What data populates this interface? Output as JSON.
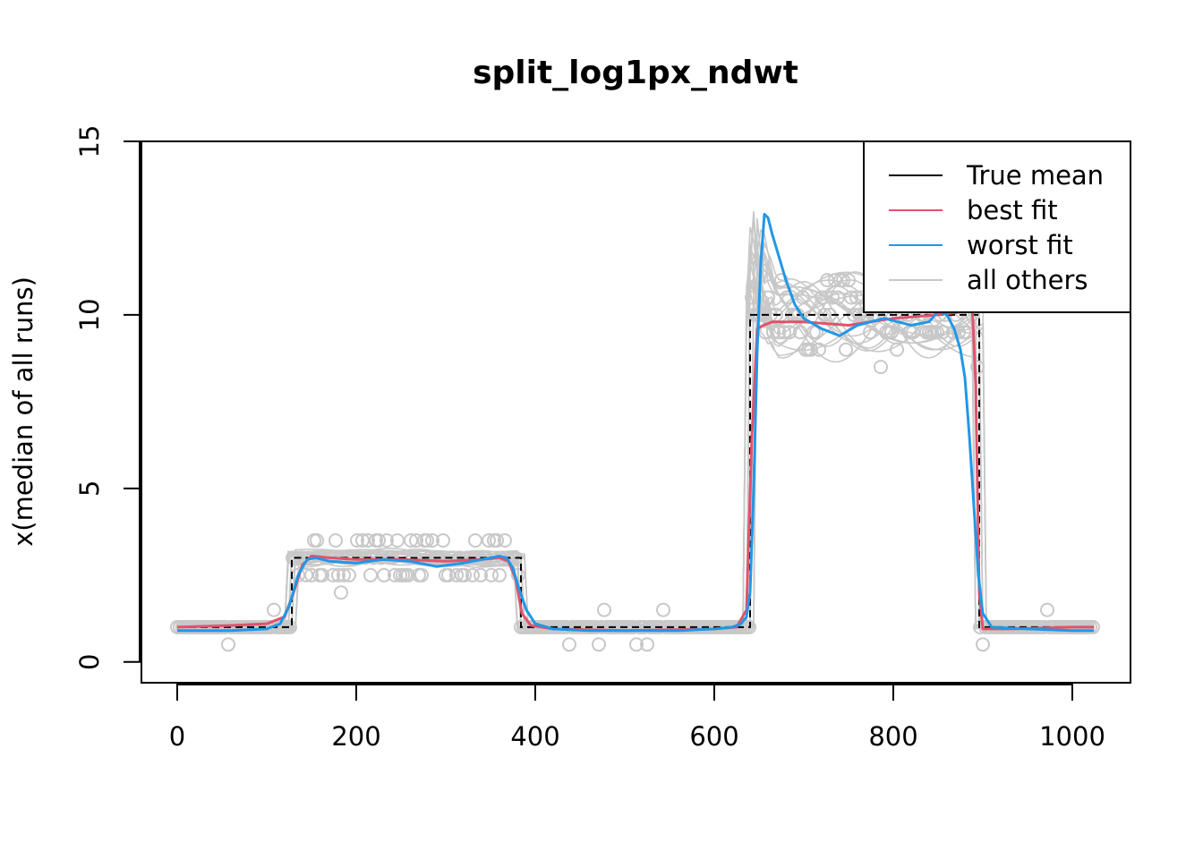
{
  "chart_data": {
    "type": "line",
    "title": "split_log1px_ndwt",
    "xlabel": "",
    "ylabel": "x(median of all runs)",
    "xlim": [
      -40,
      1065
    ],
    "ylim": [
      -0.6,
      15.0
    ],
    "x_ticks": [
      0,
      200,
      400,
      600,
      800,
      1000
    ],
    "y_ticks": [
      0,
      5,
      10,
      15
    ],
    "grid": false,
    "legend": {
      "position": "top-right",
      "entries": [
        {
          "label": "True mean",
          "color": "#000000"
        },
        {
          "label": "best fit",
          "color": "#DF536B"
        },
        {
          "label": "worst fit",
          "color": "#2297E6"
        },
        {
          "label": "all others",
          "color": "#C8C8C8"
        }
      ]
    },
    "series": [
      {
        "name": "True mean",
        "color": "#000000",
        "style": "dashed",
        "step": true,
        "x": [
          0,
          128,
          128,
          384,
          384,
          640,
          640,
          896,
          896,
          1024
        ],
        "y": [
          1,
          1,
          3,
          3,
          1,
          1,
          10,
          10,
          1,
          1
        ]
      },
      {
        "name": "best fit",
        "color": "#DF536B",
        "x": [
          0,
          60,
          100,
          120,
          130,
          140,
          150,
          170,
          200,
          250,
          300,
          340,
          360,
          370,
          378,
          385,
          395,
          420,
          500,
          600,
          625,
          636,
          642,
          648,
          655,
          665,
          700,
          750,
          800,
          850,
          880,
          888,
          892,
          896,
          900,
          930,
          1000,
          1024
        ],
        "y": [
          1.0,
          1.05,
          1.1,
          1.3,
          2.0,
          2.8,
          3.05,
          3.0,
          2.95,
          2.95,
          2.9,
          2.95,
          3.0,
          2.9,
          2.4,
          1.4,
          1.05,
          0.95,
          0.9,
          0.95,
          1.0,
          1.5,
          6.5,
          9.6,
          9.7,
          9.8,
          9.8,
          9.7,
          9.9,
          10.0,
          10.1,
          10.4,
          8.0,
          2.0,
          0.95,
          0.95,
          1.0,
          1.0
        ]
      },
      {
        "name": "worst fit",
        "color": "#2297E6",
        "x": [
          0,
          60,
          100,
          115,
          125,
          135,
          145,
          155,
          170,
          200,
          230,
          260,
          290,
          320,
          350,
          360,
          368,
          375,
          382,
          390,
          400,
          420,
          460,
          500,
          560,
          600,
          620,
          630,
          636,
          640,
          644,
          648,
          652,
          656,
          660,
          665,
          672,
          680,
          690,
          700,
          720,
          740,
          760,
          790,
          820,
          840,
          850,
          860,
          868,
          875,
          880,
          885,
          890,
          895,
          900,
          910,
          950,
          1000,
          1024
        ],
        "y": [
          0.9,
          0.9,
          0.95,
          1.1,
          1.6,
          2.5,
          2.95,
          3.0,
          2.9,
          2.85,
          2.95,
          2.9,
          2.75,
          2.85,
          3.0,
          3.05,
          3.0,
          2.7,
          2.1,
          1.5,
          1.1,
          0.95,
          0.9,
          0.9,
          0.9,
          0.95,
          1.0,
          1.1,
          1.3,
          2.0,
          5.0,
          9.0,
          11.5,
          12.9,
          12.8,
          12.3,
          11.7,
          11.0,
          10.3,
          9.9,
          9.6,
          9.4,
          9.7,
          9.9,
          9.7,
          9.8,
          10.1,
          10.0,
          9.6,
          9.0,
          8.2,
          6.5,
          4.5,
          2.5,
          1.4,
          1.0,
          0.95,
          0.9,
          0.9
        ]
      }
    ]
  }
}
